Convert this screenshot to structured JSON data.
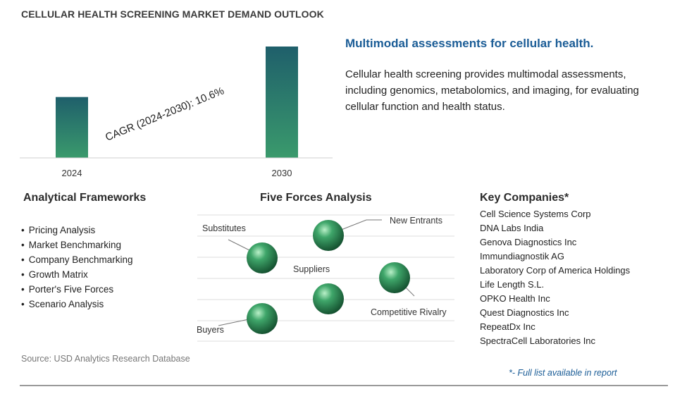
{
  "header": {
    "title": "CELLULAR HEALTH SCREENING MARKET DEMAND OUTLOOK"
  },
  "chart_data": {
    "type": "bar",
    "categories": [
      "2024",
      "2030"
    ],
    "values": [
      1.0,
      1.83
    ],
    "annotation": "CAGR (2024-2030):   10.6%",
    "title": "",
    "xlabel": "",
    "ylabel": "",
    "grid": false,
    "bar_gradient": [
      "#1f5f6b",
      "#3a9a6c"
    ]
  },
  "summary": {
    "headline": "Multimodal assessments for cellular health.",
    "description": "Cellular health screening provides multimodal assessments, including genomics, metabolomics, and imaging, for evaluating cellular function and health status."
  },
  "frameworks": {
    "heading": "Analytical Frameworks",
    "items": [
      "Pricing Analysis",
      "Market Benchmarking",
      "Company Benchmarking",
      "Growth Matrix",
      "Porter's Five Forces",
      "Scenario Analysis"
    ]
  },
  "five_forces": {
    "heading": "Five Forces Analysis",
    "labels": {
      "substitutes": "Substitutes",
      "new_entrants": "New Entrants",
      "suppliers": "Suppliers",
      "competitive_rivalry": "Competitive Rivalry",
      "buyers": "Buyers"
    },
    "sphere_color": "#3fa66a"
  },
  "companies": {
    "heading": "Key Companies*",
    "items": [
      "Cell Science Systems Corp",
      "DNA Labs India",
      "Genova Diagnostics Inc",
      "Immundiagnostik AG",
      "Laboratory Corp of America Holdings",
      "Life Length S.L.",
      "OPKO Health Inc",
      "Quest Diagnostics Inc",
      "RepeatDx Inc",
      "SpectraCell Laboratories Inc"
    ]
  },
  "footer": {
    "source": "Source: USD Analytics Research Database",
    "note": "*- Full list available in report"
  }
}
